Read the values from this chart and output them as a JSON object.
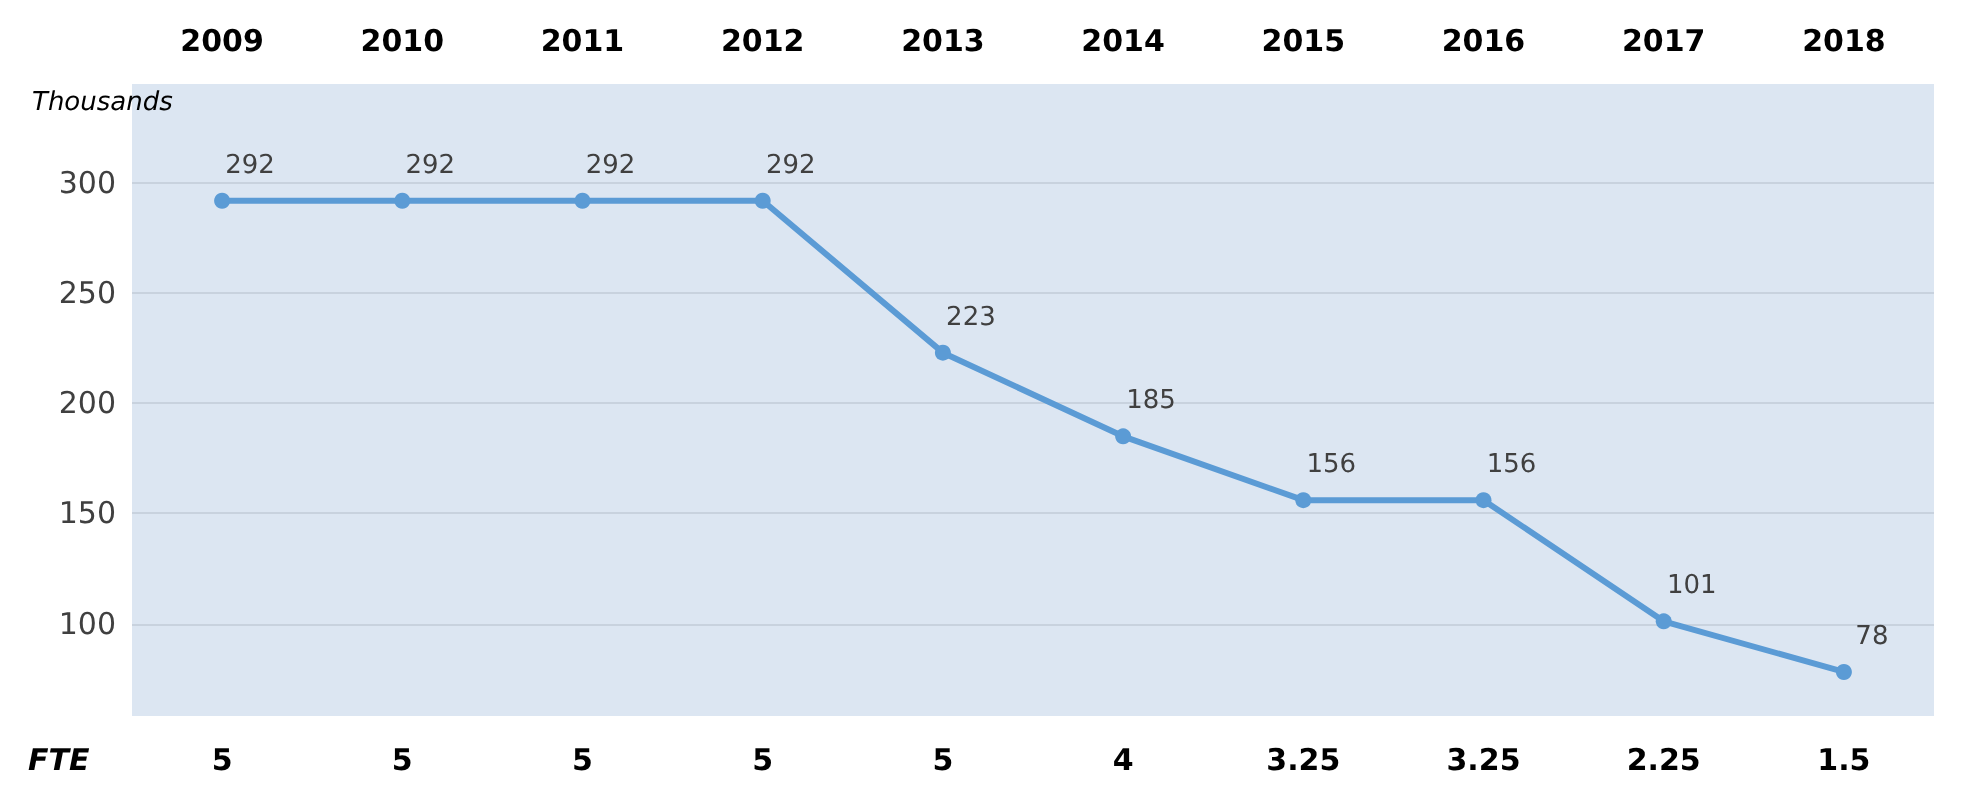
{
  "chart_data": {
    "type": "line",
    "ylabel": "Thousands",
    "categories": [
      "2009",
      "2010",
      "2011",
      "2012",
      "2013",
      "2014",
      "2015",
      "2016",
      "2017",
      "2018"
    ],
    "series": [
      {
        "color": "#5b9bd5",
        "values": [
          292,
          292,
          292,
          292,
          223,
          185,
          156,
          156,
          101,
          78
        ]
      }
    ],
    "ylim": [
      58,
      345
    ],
    "yticks": [
      100,
      150,
      200,
      250,
      300
    ],
    "grid": "y",
    "marker": "circle",
    "line_style": "solid",
    "data_labels": true,
    "annotations": [
      "FTE",
      "5",
      "5",
      "5",
      "5",
      "5",
      "4",
      "3.25",
      "3.25",
      "2.25",
      "1.5"
    ]
  }
}
